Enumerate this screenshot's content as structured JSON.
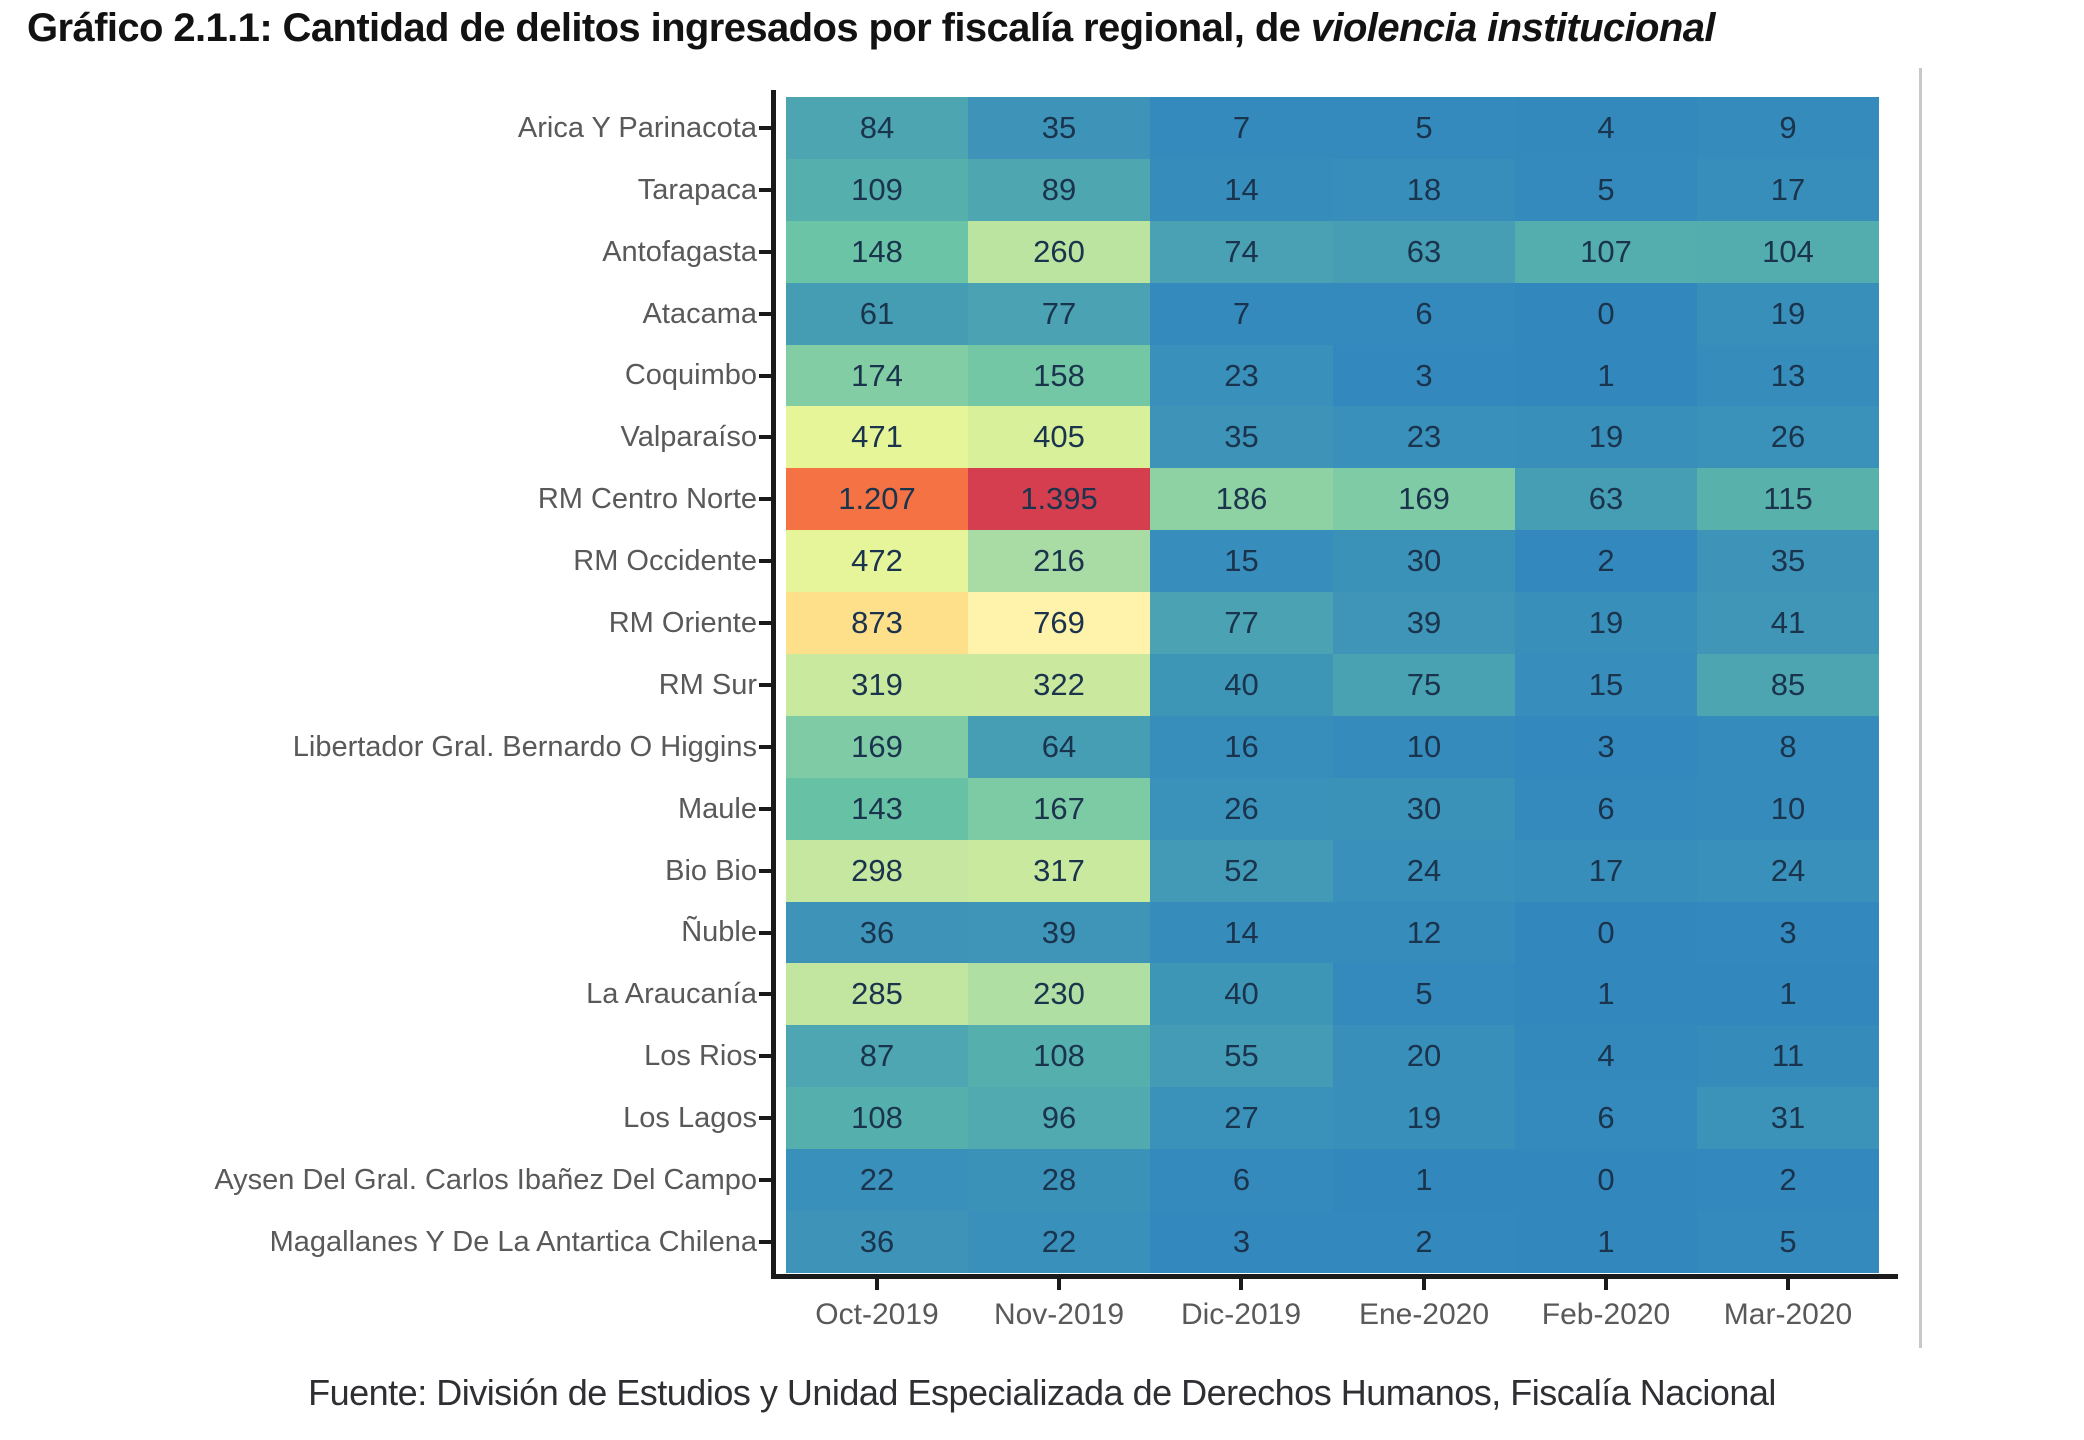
{
  "title": {
    "prefix": "Gráfico 2.1.1: Cantidad de delitos ingresados por fiscalía regional, de ",
    "emphasis": "violencia institucional"
  },
  "footer": "Fuente: División de Estudios y Unidad Especializada de Derechos Humanos, Fiscalía Nacional",
  "chart_data": {
    "type": "heatmap",
    "title": "Gráfico 2.1.1: Cantidad de delitos ingresados por fiscalía regional, de violencia institucional",
    "x_categories": [
      "Oct-2019",
      "Nov-2019",
      "Dic-2019",
      "Ene-2020",
      "Feb-2020",
      "Mar-2020"
    ],
    "y_categories": [
      "Arica Y Parinacota",
      "Tarapaca",
      "Antofagasta",
      "Atacama",
      "Coquimbo",
      "Valparaíso",
      "RM Centro Norte",
      "RM Occidente",
      "RM Oriente",
      "RM Sur",
      "Libertador Gral. Bernardo O Higgins",
      "Maule",
      "Bio Bio",
      "Ñuble",
      "La Araucanía",
      "Los Rios",
      "Los Lagos",
      "Aysen Del Gral. Carlos Ibañez Del Campo",
      "Magallanes Y De La Antartica Chilena"
    ],
    "values": [
      [
        84,
        35,
        7,
        5,
        4,
        9
      ],
      [
        109,
        89,
        14,
        18,
        5,
        17
      ],
      [
        148,
        260,
        74,
        63,
        107,
        104
      ],
      [
        61,
        77,
        7,
        6,
        0,
        19
      ],
      [
        174,
        158,
        23,
        3,
        1,
        13
      ],
      [
        471,
        405,
        35,
        23,
        19,
        26
      ],
      [
        1207,
        1395,
        186,
        169,
        63,
        115
      ],
      [
        472,
        216,
        15,
        30,
        2,
        35
      ],
      [
        873,
        769,
        77,
        39,
        19,
        41
      ],
      [
        319,
        322,
        40,
        75,
        15,
        85
      ],
      [
        169,
        64,
        16,
        10,
        3,
        8
      ],
      [
        143,
        167,
        26,
        30,
        6,
        10
      ],
      [
        298,
        317,
        52,
        24,
        17,
        24
      ],
      [
        36,
        39,
        14,
        12,
        0,
        3
      ],
      [
        285,
        230,
        40,
        5,
        1,
        1
      ],
      [
        87,
        108,
        55,
        20,
        4,
        11
      ],
      [
        108,
        96,
        27,
        19,
        6,
        31
      ],
      [
        22,
        28,
        6,
        1,
        0,
        2
      ],
      [
        36,
        22,
        3,
        2,
        1,
        5
      ]
    ],
    "value_range": [
      0,
      1395
    ],
    "number_format": "thousands-dot",
    "legend": "none",
    "grid": "off",
    "color_scale": {
      "palette": [
        "#3288bd",
        "#66c2a5",
        "#abdda4",
        "#e6f598",
        "#ffffbf",
        "#fee08b",
        "#fdae61",
        "#f46d43",
        "#d53e4f"
      ],
      "anchors": [
        [
          0,
          0.0
        ],
        [
          35,
          0.026
        ],
        [
          84,
          0.062
        ],
        [
          110,
          0.085
        ],
        [
          150,
          0.135
        ],
        [
          190,
          0.205
        ],
        [
          220,
          0.252
        ],
        [
          265,
          0.29
        ],
        [
          322,
          0.315
        ],
        [
          410,
          0.35
        ],
        [
          475,
          0.378
        ],
        [
          770,
          0.552
        ],
        [
          875,
          0.628
        ],
        [
          1210,
          0.868
        ],
        [
          1395,
          1.0
        ]
      ]
    },
    "style_colors": {
      "axis_line": "#1a1a1a",
      "tick_label": "#595959",
      "cell_text": "#1b344d",
      "title_text": "#121212",
      "footer_text": "#2e2e33",
      "side_border": "#c9c9c9"
    }
  }
}
